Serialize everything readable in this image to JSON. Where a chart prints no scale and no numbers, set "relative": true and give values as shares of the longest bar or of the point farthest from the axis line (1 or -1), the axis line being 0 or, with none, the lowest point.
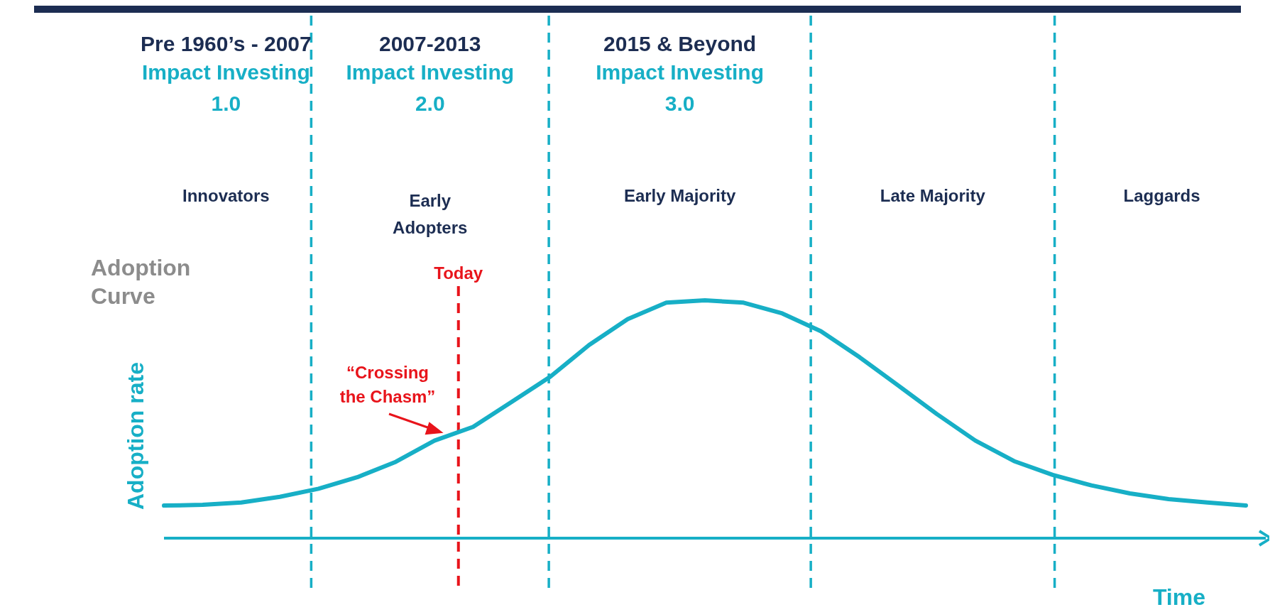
{
  "chart_data": {
    "type": "line",
    "relative": true,
    "title": "Adoption Curve",
    "xlabel": "Time",
    "ylabel": "Adoption rate",
    "categories": [
      null,
      null,
      null,
      null,
      null,
      null,
      null,
      null,
      null,
      null,
      null,
      null,
      null,
      null,
      null,
      null,
      null,
      null,
      null,
      null,
      null,
      null,
      null,
      null,
      null,
      null,
      null,
      null,
      null
    ],
    "series": [
      {
        "color": "#17afc6",
        "values": [
          0.137,
          0.14,
          0.15,
          0.174,
          0.208,
          0.256,
          0.321,
          0.41,
          0.468,
          0.573,
          0.679,
          0.812,
          0.921,
          0.99,
          1,
          0.99,
          0.945,
          0.87,
          0.761,
          0.642,
          0.522,
          0.41,
          0.324,
          0.266,
          0.222,
          0.188,
          0.164,
          0.15,
          0.137
        ]
      }
    ],
    "annotations": [
      "Pre 1960’s - 2007",
      "Impact Investing\n1.0",
      "2007-2013",
      "Impact Investing\n2.0",
      "2015  & Beyond",
      "Impact Investing\n3.0",
      "Innovators",
      "Early\nAdopters",
      "Early Majority",
      "Late Majority",
      "Laggards",
      "“Crossing\nthe Chasm”",
      "Today"
    ]
  }
}
